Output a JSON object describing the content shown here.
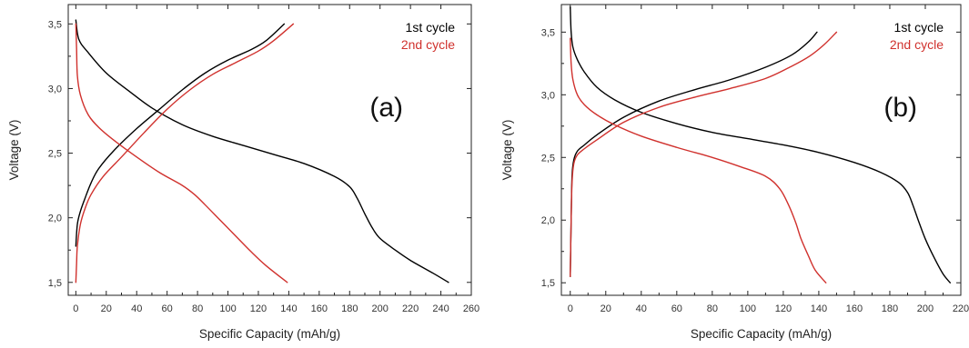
{
  "chart_data": [
    {
      "type": "line",
      "panel_label": "(a)",
      "xlabel": "Specific Capacity (mAh/g)",
      "ylabel": "Voltage (V)",
      "xlim": [
        -5,
        260
      ],
      "ylim": [
        1.4,
        3.65
      ],
      "xticks": [
        0,
        20,
        40,
        60,
        80,
        100,
        120,
        140,
        160,
        180,
        200,
        220,
        240,
        260
      ],
      "yticks": [
        1.5,
        2.0,
        2.5,
        3.0,
        3.5
      ],
      "ytick_labels": [
        "1,5",
        "2,0",
        "2,5",
        "3,0",
        "3,5"
      ],
      "legend_position": "top-right",
      "grid": false,
      "series": [
        {
          "name": "1st cycle",
          "color": "#000000",
          "branches": [
            {
              "x": [
                0,
                2,
                8,
                20,
                35,
                50,
                70,
                90,
                110,
                130,
                150,
                170,
                180,
                185,
                190,
                195,
                200,
                210,
                220,
                235,
                245
              ],
              "y": [
                3.53,
                3.38,
                3.28,
                3.12,
                2.98,
                2.85,
                2.72,
                2.63,
                2.56,
                2.49,
                2.42,
                2.32,
                2.24,
                2.15,
                2.03,
                1.92,
                1.84,
                1.75,
                1.67,
                1.57,
                1.5
              ]
            },
            {
              "x": [
                0,
                1,
                3,
                6,
                10,
                15,
                25,
                40,
                55,
                70,
                85,
                100,
                115,
                125,
                137
              ],
              "y": [
                1.78,
                1.95,
                2.05,
                2.15,
                2.27,
                2.38,
                2.52,
                2.69,
                2.84,
                2.99,
                3.12,
                3.22,
                3.3,
                3.37,
                3.5
              ]
            }
          ]
        },
        {
          "name": "2nd cycle",
          "color": "#d0312d",
          "branches": [
            {
              "x": [
                0,
                0.5,
                1,
                3,
                8,
                15,
                25,
                40,
                55,
                70,
                78,
                85,
                95,
                105,
                115,
                125,
                139
              ],
              "y": [
                3.5,
                3.3,
                3.1,
                2.95,
                2.8,
                2.7,
                2.6,
                2.47,
                2.35,
                2.25,
                2.18,
                2.1,
                1.98,
                1.86,
                1.74,
                1.63,
                1.5
              ]
            },
            {
              "x": [
                0,
                0.5,
                1,
                3,
                6,
                10,
                18,
                30,
                45,
                60,
                75,
                90,
                105,
                120,
                130,
                143
              ],
              "y": [
                1.5,
                1.65,
                1.78,
                1.95,
                2.07,
                2.18,
                2.32,
                2.47,
                2.66,
                2.84,
                2.99,
                3.11,
                3.2,
                3.29,
                3.37,
                3.5
              ]
            }
          ]
        }
      ]
    },
    {
      "type": "line",
      "panel_label": "(b)",
      "xlabel": "Specific Capacity (mAh/g)",
      "ylabel": "Voltage (V)",
      "xlim": [
        -5,
        220
      ],
      "ylim": [
        1.4,
        3.72
      ],
      "xticks": [
        0,
        20,
        40,
        60,
        80,
        100,
        120,
        140,
        160,
        180,
        200,
        220
      ],
      "yticks": [
        1.5,
        2.0,
        2.5,
        3.0,
        3.5
      ],
      "ytick_labels": [
        "1,5",
        "2,0",
        "2,5",
        "3,0",
        "3,5"
      ],
      "legend_position": "top-right",
      "grid": false,
      "series": [
        {
          "name": "1st cycle",
          "color": "#000000",
          "branches": [
            {
              "x": [
                0,
                0.5,
                1.5,
                4,
                8,
                15,
                25,
                40,
                60,
                80,
                100,
                120,
                140,
                160,
                175,
                185,
                190,
                193,
                196,
                200,
                205,
                210,
                214
              ],
              "y": [
                3.7,
                3.5,
                3.38,
                3.28,
                3.18,
                3.06,
                2.96,
                2.86,
                2.77,
                2.7,
                2.65,
                2.6,
                2.54,
                2.46,
                2.38,
                2.3,
                2.22,
                2.12,
                2.0,
                1.85,
                1.7,
                1.57,
                1.5
              ]
            },
            {
              "x": [
                0,
                0.5,
                1,
                2,
                4,
                8,
                15,
                30,
                50,
                70,
                90,
                110,
                125,
                134,
                139
              ],
              "y": [
                1.55,
                2.0,
                2.35,
                2.48,
                2.55,
                2.6,
                2.68,
                2.82,
                2.95,
                3.04,
                3.12,
                3.22,
                3.32,
                3.42,
                3.5
              ]
            }
          ]
        },
        {
          "name": "2nd cycle",
          "color": "#d0312d",
          "branches": [
            {
              "x": [
                0,
                0.5,
                1.5,
                4,
                8,
                15,
                25,
                40,
                60,
                80,
                95,
                110,
                118,
                123,
                127,
                130,
                134,
                138,
                144
              ],
              "y": [
                3.45,
                3.25,
                3.12,
                3.0,
                2.92,
                2.84,
                2.76,
                2.67,
                2.58,
                2.5,
                2.43,
                2.35,
                2.25,
                2.12,
                1.98,
                1.85,
                1.72,
                1.6,
                1.5
              ]
            },
            {
              "x": [
                0,
                0.5,
                1,
                2,
                4,
                8,
                15,
                30,
                50,
                70,
                90,
                110,
                125,
                135,
                143,
                150
              ],
              "y": [
                1.55,
                2.0,
                2.3,
                2.45,
                2.52,
                2.57,
                2.64,
                2.78,
                2.9,
                2.98,
                3.05,
                3.13,
                3.23,
                3.31,
                3.4,
                3.5
              ]
            }
          ]
        }
      ]
    }
  ]
}
